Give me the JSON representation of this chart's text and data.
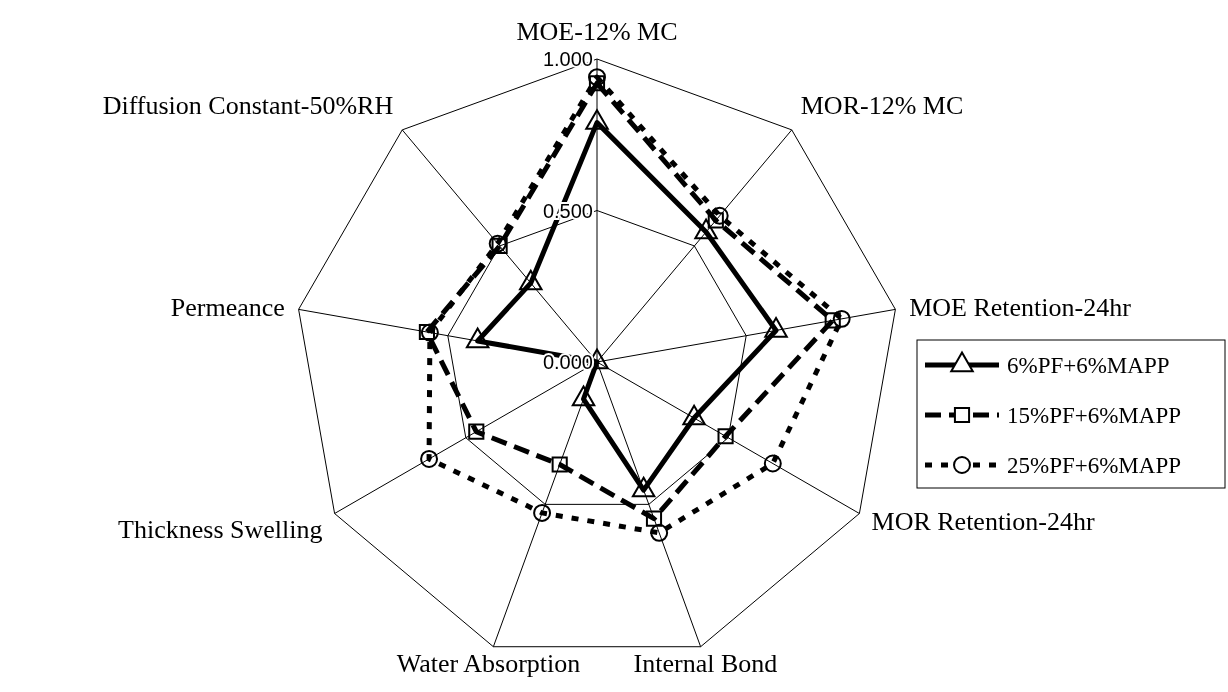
{
  "chart_data": {
    "type": "radar",
    "categories": [
      "MOE-12% MC",
      "MOR-12% MC",
      "MOE Retention-24hr",
      "MOR Retention-24hr",
      "Internal Bond",
      "Water Absorption",
      "Thickness Swelling",
      "Permeance",
      "Diffusion Constant-50%RH"
    ],
    "ylim": [
      0,
      1
    ],
    "yticks": [
      {
        "value": 0,
        "label": "0.000"
      },
      {
        "value": 0.5,
        "label": "0.500"
      },
      {
        "value": 1,
        "label": "1.000"
      }
    ],
    "grid": true,
    "legend": "right",
    "series": [
      {
        "name": "6%PF+6%MAPP",
        "color": "#000000",
        "marker": "triangle",
        "line_style": "solid",
        "values": [
          0.79,
          0.56,
          0.6,
          0.37,
          0.45,
          0.13,
          0,
          0.4,
          0.34
        ]
      },
      {
        "name": "15%PF+6%MAPP",
        "color": "#000000",
        "marker": "square",
        "line_style": "dashed",
        "values": [
          0.92,
          0.61,
          0.79,
          0.49,
          0.55,
          0.36,
          0.46,
          0.57,
          0.5
        ]
      },
      {
        "name": "25%PF+6%MAPP",
        "color": "#000000",
        "marker": "circle",
        "line_style": "dotted",
        "values": [
          0.94,
          0.63,
          0.82,
          0.67,
          0.6,
          0.53,
          0.64,
          0.56,
          0.51
        ]
      }
    ]
  }
}
